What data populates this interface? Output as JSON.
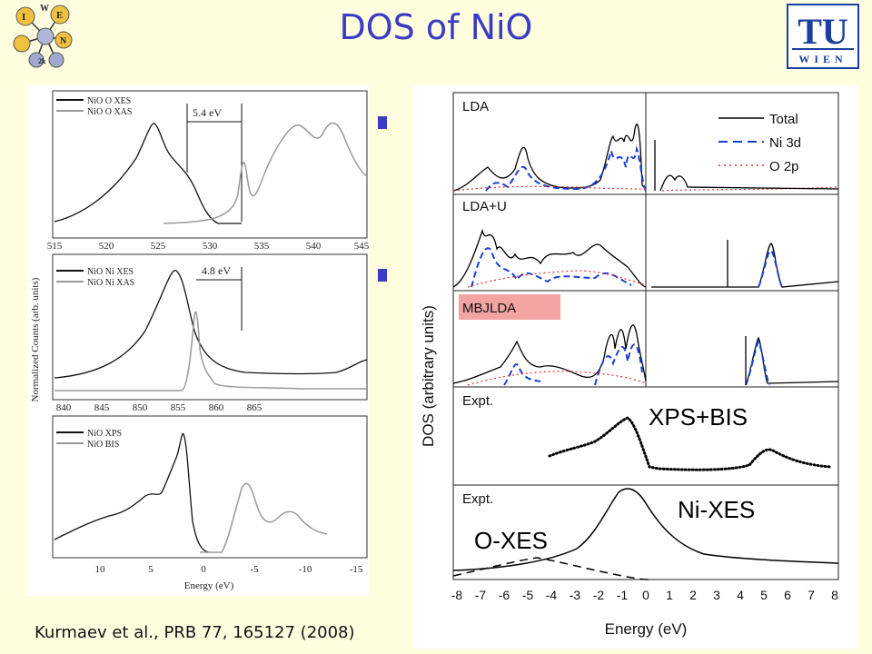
{
  "slide": {
    "title": "DOS of NiO",
    "citation": "Kurmaev et al., PRB 77, 165127 (2008)",
    "logos": {
      "left": "wien2k-logo",
      "right": "tu-wien-logo",
      "tu_text": "TU",
      "wien_text": "WIEN"
    },
    "wien2k_letters": [
      "W",
      "I",
      "E",
      "N",
      "2k"
    ]
  },
  "left_figure": {
    "y_axis_label": "Normalized Counts (arb. units)",
    "x_axis_label": "Energy (eV)",
    "panels": [
      {
        "legend": [
          "NiO O XES",
          "NiO O XAS"
        ],
        "annotation": "5.4 eV",
        "ticks": [
          "515",
          "520",
          "525",
          "530",
          "535",
          "540",
          "545"
        ]
      },
      {
        "legend": [
          "NiO Ni XES",
          "NiO Ni XAS"
        ],
        "annotation": "4.8 eV",
        "ticks": [
          "840",
          "845",
          "850",
          "855",
          "860",
          "865"
        ]
      },
      {
        "legend": [
          "NiO XPS",
          "NiO BIS"
        ],
        "ticks": [
          "10",
          "5",
          "0",
          "-5",
          "-10",
          "-15"
        ]
      }
    ]
  },
  "right_figure": {
    "y_axis_label": "DOS  (arbitrary units)",
    "x_axis_label": "Energy  (eV)",
    "panel_labels": [
      "LDA",
      "LDA+U",
      "MBJLDA",
      "Expt.",
      "Expt."
    ],
    "legend": [
      "Total",
      "Ni 3d",
      "O 2p"
    ],
    "ticks": [
      "-8",
      "-7",
      "-6",
      "-5",
      "-4",
      "-3",
      "-2",
      "-1",
      "0",
      "1",
      "2",
      "3",
      "4",
      "5",
      "6",
      "7",
      "8"
    ],
    "overlay_labels": {
      "xps_bis": "XPS+BIS",
      "ni_xes": "Ni-XES",
      "o_xes": "O-XES"
    },
    "colors": {
      "total": "#000000",
      "ni3d": "#1a3fd6",
      "o2p": "#e03030",
      "mbj_highlight": "#f4a3a3"
    }
  }
}
